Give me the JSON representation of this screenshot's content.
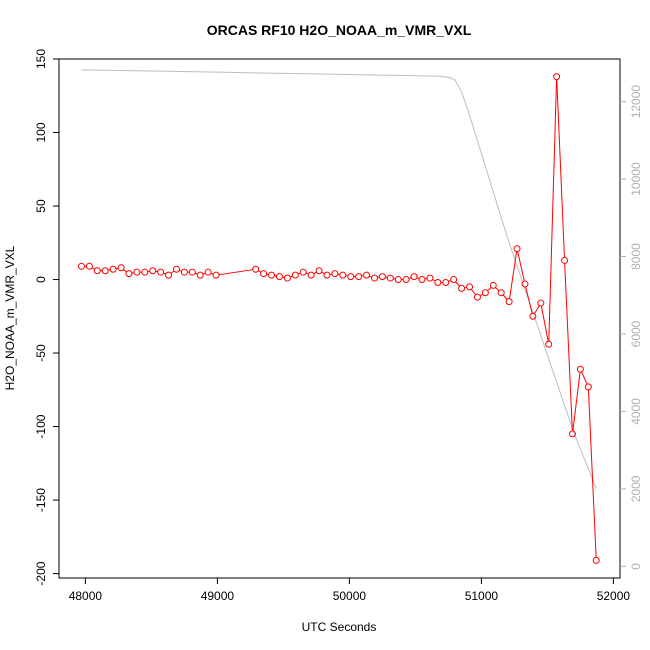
{
  "chart_data": {
    "type": "line",
    "title": "ORCAS RF10 H2O_NOAA_m_VMR_VXL",
    "xlabel": "UTC Seconds",
    "ylabel": "H2O_NOAA_m_VMR_VXL",
    "xlim": [
      47800,
      52050
    ],
    "ylim": [
      -203,
      150
    ],
    "y2lim": [
      -300,
      13100
    ],
    "x_ticks": [
      48000,
      49000,
      50000,
      51000,
      52000
    ],
    "y_ticks": [
      -200,
      -150,
      -100,
      -50,
      0,
      50,
      100,
      150
    ],
    "y2_ticks": [
      0,
      2000,
      4000,
      6000,
      8000,
      10000,
      12000
    ],
    "grid": false,
    "colors": {
      "primary": "#ff0000",
      "secondary": "#bebebe",
      "axis": "#000000",
      "y2_tick": "#b0b0b0"
    },
    "series": [
      {
        "axis": "left",
        "style": "points+lines",
        "color": "#ff0000",
        "x": [
          47970,
          48030,
          48090,
          48150,
          48210,
          48270,
          48330,
          48390,
          48450,
          48510,
          48570,
          48630,
          48690,
          48750,
          48810,
          48870,
          48930,
          48990,
          49290,
          49350,
          49410,
          49470,
          49530,
          49590,
          49650,
          49710,
          49770,
          49830,
          49890,
          49950,
          50010,
          50070,
          50130,
          50190,
          50250,
          50310,
          50370,
          50430,
          50490,
          50550,
          50610,
          50670,
          50730,
          50790,
          50850,
          50910,
          50970,
          51030,
          51090,
          51150,
          51210,
          51270,
          51330,
          51390,
          51450,
          51510,
          51570,
          51630,
          51690,
          51750,
          51810,
          51870
        ],
        "y": [
          9,
          9,
          6,
          6,
          7,
          8,
          4,
          5,
          5,
          6,
          5,
          3,
          7,
          5,
          5,
          3,
          5,
          3,
          7,
          4,
          3,
          2,
          1,
          3,
          5,
          3,
          6,
          3,
          4,
          3,
          2,
          2,
          3,
          1,
          2,
          1,
          0,
          0,
          2,
          0,
          1,
          -2,
          -2,
          0,
          -6,
          -5,
          -12,
          -9,
          -4,
          -9,
          -15,
          21,
          -3,
          -25,
          -16,
          -44,
          138,
          13,
          -105,
          -61,
          -73,
          -191
        ]
      },
      {
        "axis": "right",
        "style": "line",
        "color": "#bebebe",
        "x": [
          47970,
          48500,
          49000,
          49500,
          50000,
          50300,
          50600,
          50700,
          50760,
          50800,
          50850,
          50900,
          51000,
          51100,
          51200,
          51300,
          51400,
          51500,
          51600,
          51700,
          51800,
          51870
        ],
        "y": [
          12820,
          12790,
          12760,
          12730,
          12700,
          12680,
          12660,
          12650,
          12620,
          12560,
          12250,
          11760,
          10660,
          9560,
          8460,
          7460,
          6460,
          5460,
          4460,
          3460,
          2610,
          2010
        ]
      }
    ]
  }
}
